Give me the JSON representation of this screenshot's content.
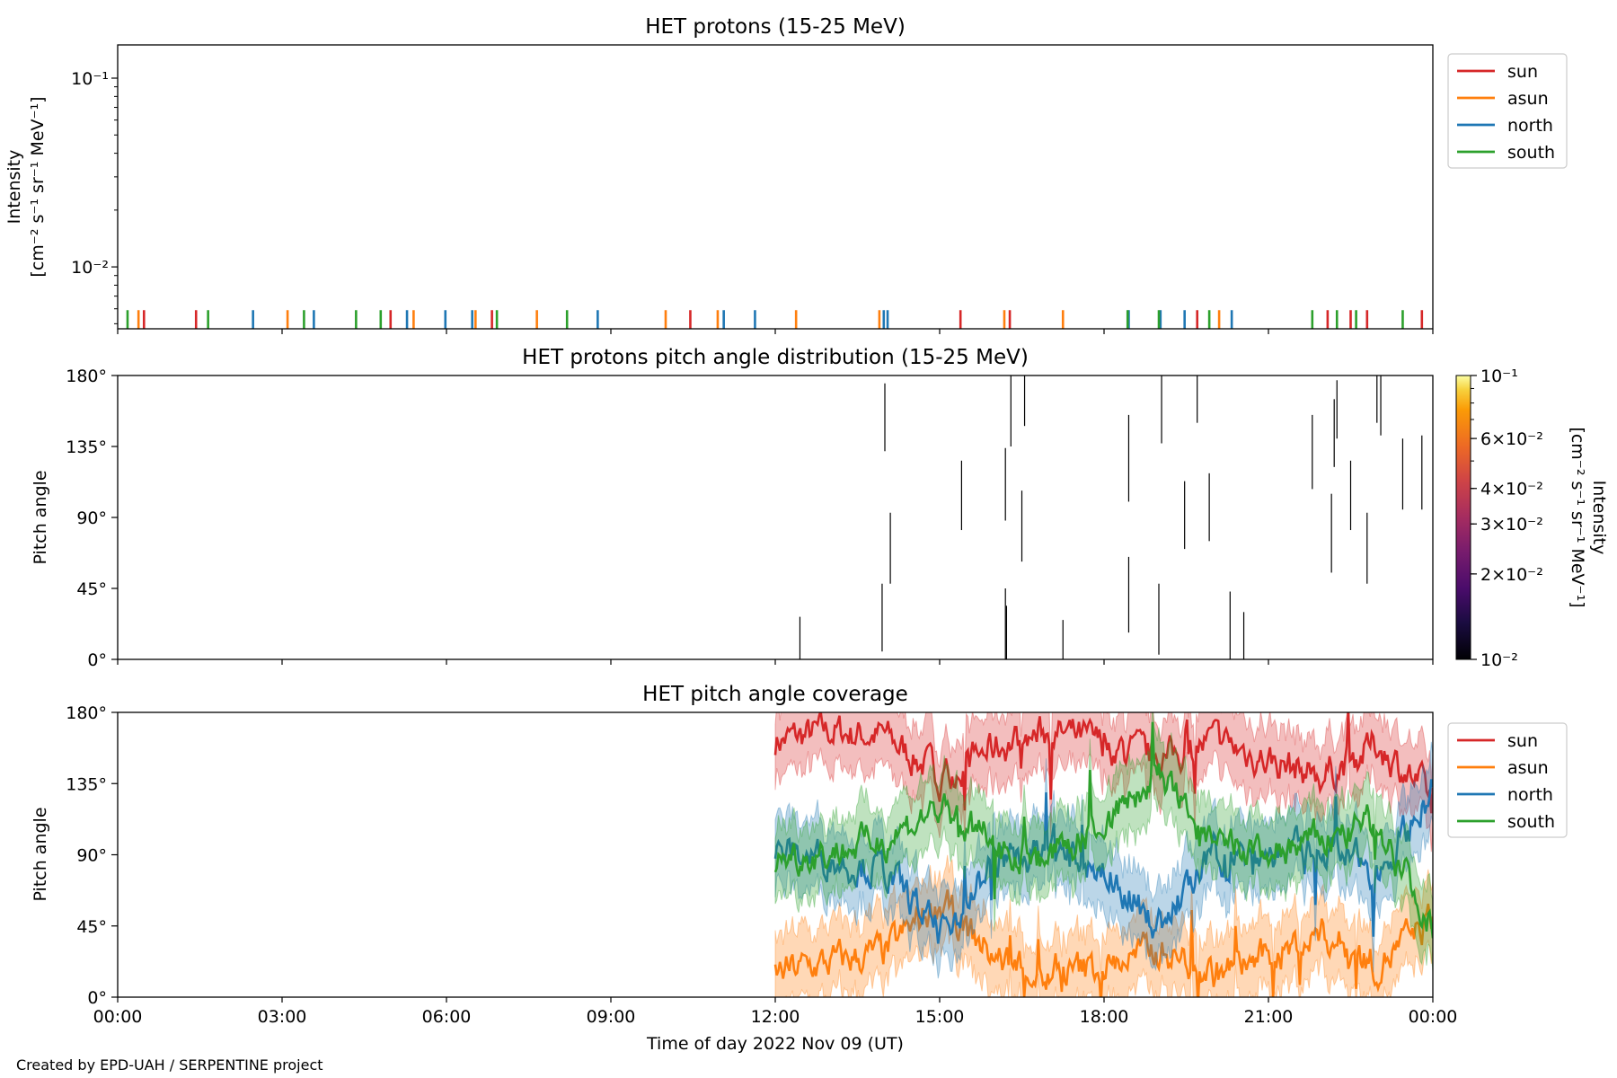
{
  "credit": "Created by EPD-UAH / SERPENTINE project",
  "xlabel": "Time of day 2022 Nov 09 (UT)",
  "x_ticks": [
    "00:00",
    "03:00",
    "06:00",
    "09:00",
    "12:00",
    "15:00",
    "18:00",
    "21:00",
    "00:00"
  ],
  "series_colors": {
    "sun": "#d62728",
    "asun": "#ff7f0e",
    "north": "#1f77b4",
    "south": "#2ca02c"
  },
  "legend": [
    "sun",
    "asun",
    "north",
    "south"
  ],
  "chart_data": [
    {
      "type": "line",
      "title": "HET protons (15-25 MeV)",
      "ylabel_line1": "Intensity",
      "ylabel_line2": "[cm⁻² s⁻¹ sr⁻¹ MeV⁻¹]",
      "yscale": "log",
      "xlim_hours": [
        0,
        24
      ],
      "ylim": [
        0.0047,
        0.15
      ],
      "y_ticks": [
        "10⁻¹",
        "10⁻²"
      ],
      "legend_placement": "outside-right-top",
      "spikes": {
        "sun": [
          0.48,
          1.43,
          4.98,
          6.83,
          10.45,
          15.38,
          16.28,
          19.7,
          22.08,
          22.5,
          22.8,
          23.8
        ],
        "asun": [
          0.38,
          3.1,
          5.4,
          6.53,
          7.65,
          10.0,
          10.95,
          12.38,
          13.9,
          16.18,
          17.25,
          20.1
        ],
        "north": [
          2.47,
          3.58,
          5.28,
          5.98,
          6.47,
          8.76,
          11.06,
          11.63,
          13.98,
          14.05,
          18.45,
          19.03,
          19.47,
          20.33
        ],
        "south": [
          0.18,
          1.65,
          3.4,
          4.35,
          4.8,
          6.92,
          8.2,
          18.43,
          19.0,
          19.92,
          21.8,
          22.25,
          22.6,
          23.45
        ]
      },
      "spike_value": 0.0059
    },
    {
      "type": "heatmap",
      "title": "HET protons pitch angle distribution (15-25 MeV)",
      "ylabel": "Pitch angle",
      "ylim": [
        0,
        180
      ],
      "y_ticks": [
        "0°",
        "45°",
        "90°",
        "135°",
        "180°"
      ],
      "colorbar_label_line1": "Intensity",
      "colorbar_label_line2": "[cm⁻² s⁻¹ sr⁻¹ MeV⁻¹]",
      "colorbar_ticks": [
        "10⁻¹",
        "6×10⁻²",
        "4×10⁻²",
        "3×10⁻²",
        "2×10⁻²",
        "10⁻²"
      ],
      "colorbar_scale": "log",
      "colorbar_range": [
        0.01,
        0.1
      ],
      "segments": [
        [
          12.45,
          0,
          27
        ],
        [
          13.95,
          5,
          48
        ],
        [
          14.0,
          132,
          175
        ],
        [
          14.1,
          48,
          93
        ],
        [
          15.4,
          82,
          126
        ],
        [
          16.2,
          0,
          45
        ],
        [
          16.22,
          0,
          34
        ],
        [
          16.2,
          88,
          134
        ],
        [
          16.3,
          135,
          180
        ],
        [
          16.5,
          62,
          107
        ],
        [
          16.55,
          148,
          180
        ],
        [
          17.25,
          0,
          25
        ],
        [
          18.45,
          17,
          65
        ],
        [
          18.45,
          100,
          155
        ],
        [
          19.0,
          3,
          48
        ],
        [
          19.05,
          137,
          180
        ],
        [
          19.47,
          70,
          113
        ],
        [
          19.7,
          150,
          180
        ],
        [
          19.92,
          75,
          118
        ],
        [
          20.3,
          0,
          43
        ],
        [
          20.55,
          0,
          30
        ],
        [
          21.8,
          108,
          155
        ],
        [
          22.15,
          55,
          105
        ],
        [
          22.2,
          122,
          165
        ],
        [
          22.25,
          140,
          177
        ],
        [
          22.5,
          82,
          126
        ],
        [
          22.8,
          48,
          93
        ],
        [
          22.98,
          150,
          180
        ],
        [
          23.05,
          142,
          180
        ],
        [
          23.45,
          95,
          140
        ],
        [
          23.8,
          95,
          142
        ]
      ]
    },
    {
      "type": "area",
      "title": "HET pitch angle coverage",
      "ylabel": "Pitch angle",
      "ylim": [
        0,
        180
      ],
      "xlim_hours": [
        0,
        24
      ],
      "y_ticks": [
        "0°",
        "45°",
        "90°",
        "135°",
        "180°"
      ],
      "data_start_hour": 12.0,
      "legend_placement": "outside-right-top",
      "band_halfwidth": 22,
      "series": [
        {
          "name": "sun",
          "x": [
            12,
            13,
            14,
            15,
            16,
            17,
            18,
            19,
            20,
            21,
            22,
            23,
            24
          ],
          "y": [
            162,
            168,
            165,
            140,
            158,
            168,
            160,
            150,
            162,
            150,
            140,
            160,
            125
          ]
        },
        {
          "name": "asun",
          "x": [
            12,
            13,
            14,
            15,
            16,
            17,
            18,
            19,
            20,
            21,
            22,
            23,
            24
          ],
          "y": [
            15,
            22,
            28,
            60,
            25,
            12,
            20,
            30,
            15,
            25,
            40,
            20,
            50
          ]
        },
        {
          "name": "north",
          "x": [
            12,
            13,
            14,
            15,
            16,
            17,
            18,
            19,
            20,
            21,
            22,
            23,
            24
          ],
          "y": [
            92,
            88,
            80,
            40,
            85,
            92,
            80,
            45,
            88,
            90,
            95,
            80,
            130
          ]
        },
        {
          "name": "south",
          "x": [
            12,
            13,
            14,
            15,
            16,
            17,
            18,
            19,
            20,
            21,
            22,
            23,
            24
          ],
          "y": [
            88,
            92,
            100,
            120,
            95,
            88,
            110,
            140,
            95,
            90,
            100,
            110,
            45
          ]
        }
      ]
    }
  ]
}
